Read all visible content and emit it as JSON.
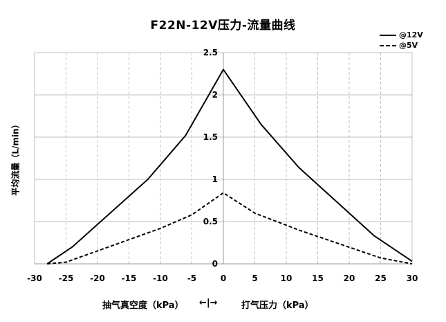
{
  "chart_data": {
    "type": "line",
    "title": "F22N-12V压力-流量曲线",
    "ylabel": "平均流量（L/min）",
    "xlabel_left": "抽气真空度（kPa）",
    "xlabel_arrows": "←|→",
    "xlabel_right": "打气压力（kPa）",
    "xlim": [
      -30,
      30
    ],
    "ylim": [
      0,
      2.5
    ],
    "x_ticks": [
      -30,
      -25,
      -20,
      -15,
      -10,
      -5,
      0,
      5,
      10,
      15,
      20,
      25,
      30
    ],
    "x_tick_labels": [
      "-30",
      "-25",
      "-20",
      "-15",
      "-10",
      "-5",
      "0",
      "5",
      "10",
      "15",
      "20",
      "25",
      "30"
    ],
    "y_ticks": [
      0,
      0.5,
      1,
      1.5,
      2,
      2.5
    ],
    "y_tick_labels": [
      "0",
      "0.5",
      "1",
      "1.5",
      "2",
      "2.5"
    ],
    "grid": "vertical and horizontal, dashed vertical",
    "legend_position": "top-right",
    "series": [
      {
        "name": "@12V",
        "style": "solid",
        "color": "#000000",
        "x": [
          -28,
          -24,
          -12,
          -6,
          0,
          6,
          12,
          24,
          30
        ],
        "y": [
          0,
          0.2,
          1.0,
          1.52,
          2.3,
          1.65,
          1.14,
          0.33,
          0.03
        ]
      },
      {
        "name": "@5V",
        "style": "dashed",
        "color": "#000000",
        "x": [
          -28,
          -25,
          -10,
          -5,
          0,
          5,
          12,
          25,
          30
        ],
        "y": [
          0,
          0.02,
          0.42,
          0.58,
          0.84,
          0.6,
          0.4,
          0.07,
          0
        ]
      }
    ]
  }
}
